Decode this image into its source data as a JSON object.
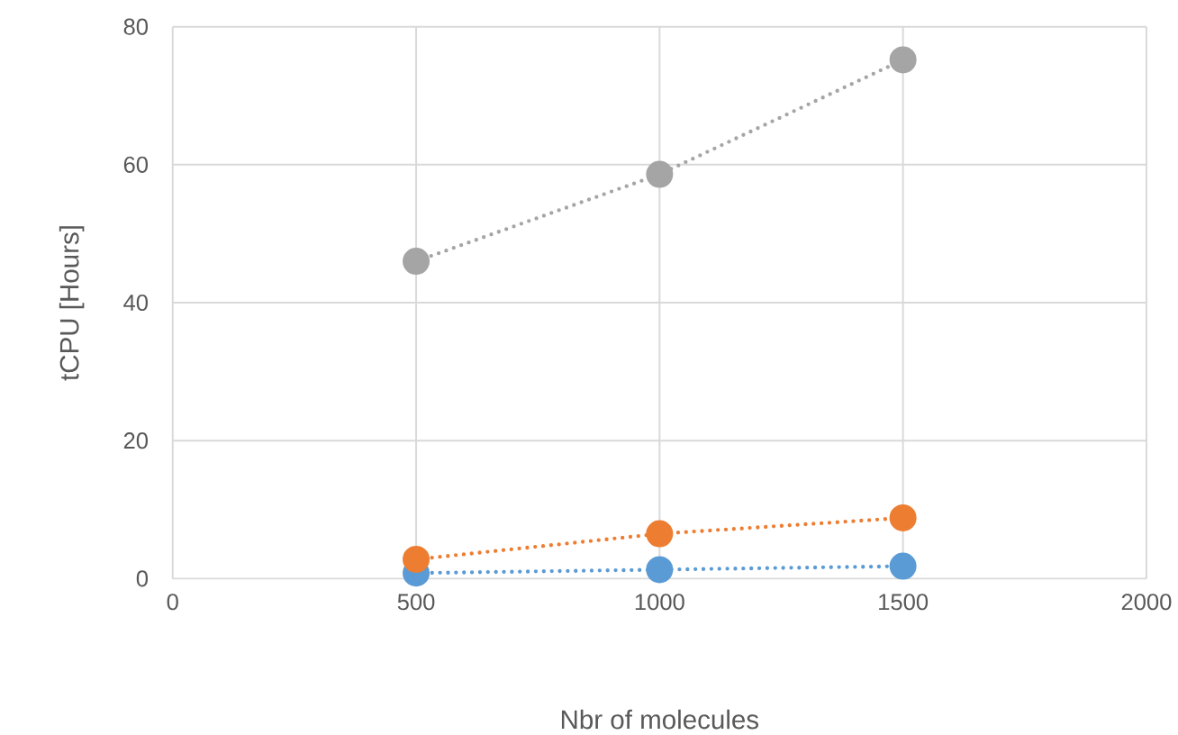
{
  "chart_data": {
    "type": "line",
    "xlabel": "Nbr of molecules",
    "ylabel": "tCPU [Hours]",
    "x": [
      500,
      1000,
      1500
    ],
    "series": [
      {
        "color": "#5b9bd5",
        "values": [
          0.8,
          1.3,
          1.8
        ]
      },
      {
        "color": "#ed7d31",
        "values": [
          2.8,
          6.5,
          8.8
        ]
      },
      {
        "color": "#a5a5a5",
        "values": [
          46,
          58.6,
          75.2
        ]
      }
    ],
    "xlim": [
      0,
      2000
    ],
    "ylim": [
      0,
      80
    ],
    "xticks": [
      0,
      500,
      1000,
      1500,
      2000
    ],
    "yticks": [
      0,
      20,
      40,
      60,
      80
    ],
    "grid": true,
    "marker": "circle",
    "line_style": "dotted"
  }
}
